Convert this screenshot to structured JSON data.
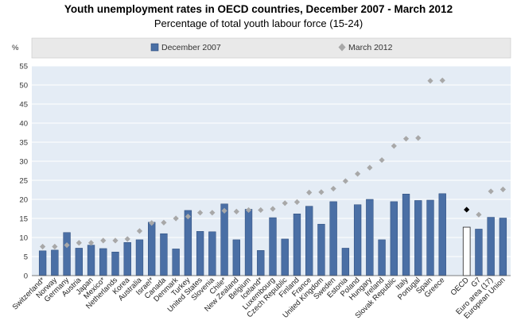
{
  "title": "Youth unemployment rates in OECD countries, December 2007 - March 2012",
  "subtitle": "Percentage of total youth labour force (15-24)",
  "colors": {
    "bar": "#4a6fa5",
    "bar_stroke": "#2b4a7a",
    "oecd_bar": "#ffffff",
    "diamond": "#a8a8a8",
    "oecd_diamond": "#000000",
    "plot_bg": "#e4ecf5",
    "legend_bg": "#e9e9e9"
  },
  "icons": {
    "legend_bar": "blue-square-icon",
    "legend_diamond": "grey-diamond-icon"
  },
  "chart_data": {
    "type": "bar",
    "title": "Youth unemployment rates in OECD countries, December 2007 - March 2012",
    "subtitle": "Percentage of total youth labour force (15-24)",
    "ylabel": "%",
    "ylim": [
      0,
      55
    ],
    "yticks": [
      0,
      5,
      10,
      15,
      20,
      25,
      30,
      35,
      40,
      45,
      50,
      55
    ],
    "grid": true,
    "legend_position": "top",
    "legend": [
      "December 2007",
      "March 2012"
    ],
    "categories": [
      "Switzerland*",
      "Norway",
      "Germany",
      "Austria",
      "Japan",
      "Mexico*",
      "Netherlands",
      "Korea",
      "Australia",
      "Israel*",
      "Canada",
      "Denmark",
      "Turkey",
      "United States",
      "Slovenia",
      "Chile*",
      "New Zealand",
      "Belgium",
      "Iceland*",
      "Luxembourg",
      "Czech Republic",
      "Finland",
      "France",
      "United Kingdom",
      "Sweden",
      "Estonia",
      "Poland",
      "Hungary",
      "Ireland",
      "Slovak Republic",
      "Italy",
      "Portugal",
      "Spain",
      "Greece",
      "OECD",
      "G7",
      "Euro area (17)",
      "European Union"
    ],
    "gap_before_index": 34,
    "highlight_index": 34,
    "series": [
      {
        "name": "December 2007",
        "marker": "bar",
        "values": [
          6.5,
          6.7,
          11.3,
          7.2,
          8.0,
          7.1,
          6.2,
          8.7,
          9.4,
          14.0,
          11.0,
          7.0,
          17.1,
          11.6,
          11.5,
          18.8,
          9.4,
          17.4,
          6.6,
          15.2,
          9.6,
          16.2,
          18.2,
          13.5,
          19.4,
          7.2,
          18.6,
          20.0,
          9.4,
          19.4,
          21.4,
          19.7,
          19.8,
          21.5,
          12.7,
          12.2,
          15.3,
          15.1
        ]
      },
      {
        "name": "March 2012",
        "marker": "diamond",
        "values": [
          7.6,
          7.6,
          8.0,
          8.6,
          8.6,
          9.2,
          9.2,
          9.6,
          11.7,
          13.8,
          13.9,
          15.0,
          15.5,
          16.5,
          16.5,
          17.0,
          16.8,
          17.2,
          17.2,
          17.5,
          19.0,
          19.3,
          21.8,
          21.9,
          22.8,
          24.8,
          26.7,
          28.3,
          30.3,
          34.0,
          35.9,
          36.1,
          51.1,
          51.2,
          17.3,
          16.0,
          22.1,
          22.6
        ]
      }
    ]
  }
}
